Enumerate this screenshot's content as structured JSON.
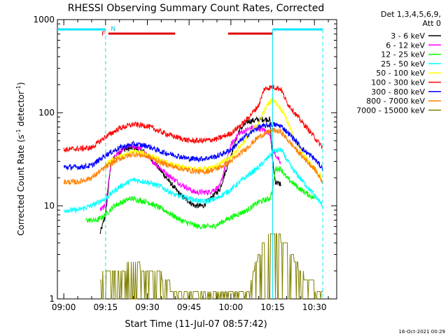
{
  "chart_data": {
    "type": "line",
    "title": "RHESSI Observing Summary Count Rates, Corrected",
    "xlabel": "Start Time (11-Jul-07 08:57:42)",
    "ylabel_main": "Corrected Count Rate (s",
    "ylabel_sup1": "-1",
    "ylabel_mid": " detector",
    "ylabel_sup2": "-1",
    "ylabel_end": ")",
    "yscale": "log",
    "ylim": [
      1,
      1000
    ],
    "xlim": [
      "08:57:42",
      "10:38"
    ],
    "x_ticks": [
      "09:00",
      "09:15",
      "09:30",
      "09:45",
      "10:00",
      "10:15",
      "10:30"
    ],
    "y_ticks": [
      "1",
      "10",
      "100",
      "1000"
    ],
    "legend_header": [
      "Det 1,3,4,5,6,9,",
      "Att 0"
    ],
    "legend_position": "right",
    "footer_date": "16-Oct-2021 00:29",
    "flags": {
      "F_label": "F",
      "N_label": "N",
      "eclipse_bars": [
        [
          "08:57:42",
          "09:15"
        ],
        [
          "10:15",
          "10:33"
        ]
      ],
      "flare_bars": [
        [
          "09:16",
          "09:40"
        ],
        [
          "09:59",
          "10:15"
        ]
      ],
      "saa_lines": [
        "09:15",
        "10:33"
      ],
      "night_lines": [
        "10:15"
      ]
    },
    "series": [
      {
        "name": "3 - 6 keV",
        "color": "#000000",
        "points": [
          [
            "09:13",
            5
          ],
          [
            "09:15",
            8
          ],
          [
            "09:17",
            30
          ],
          [
            "09:21",
            40
          ],
          [
            "09:25",
            42
          ],
          [
            "09:29",
            38
          ],
          [
            "09:33",
            28
          ],
          [
            "09:38",
            18
          ],
          [
            "09:42",
            13
          ],
          [
            "09:47",
            10
          ],
          [
            "09:50",
            10
          ],
          [
            "09:56",
            15
          ],
          [
            "10:00",
            35
          ],
          [
            "10:03",
            65
          ],
          [
            "10:06",
            80
          ],
          [
            "10:10",
            85
          ],
          [
            "10:14",
            85
          ],
          [
            "10:15",
            30
          ],
          [
            "10:16",
            18
          ],
          [
            "10:18",
            17
          ]
        ]
      },
      {
        "name": "6 - 12 keV",
        "color": "#ff00ff",
        "points": [
          [
            "09:13",
            9
          ],
          [
            "09:15",
            10
          ],
          [
            "09:17",
            30
          ],
          [
            "09:21",
            40
          ],
          [
            "09:24",
            45
          ],
          [
            "09:28",
            40
          ],
          [
            "09:32",
            30
          ],
          [
            "09:37",
            22
          ],
          [
            "09:42",
            17
          ],
          [
            "09:47",
            14
          ],
          [
            "09:52",
            14
          ],
          [
            "09:56",
            16
          ],
          [
            "10:00",
            45
          ],
          [
            "10:03",
            60
          ],
          [
            "10:08",
            70
          ],
          [
            "10:12",
            65
          ],
          [
            "10:14",
            60
          ],
          [
            "10:15",
            40
          ],
          [
            "10:18",
            28
          ]
        ]
      },
      {
        "name": "12 - 25 keV",
        "color": "#00ff00",
        "points": [
          [
            "09:08",
            7
          ],
          [
            "09:12",
            7
          ],
          [
            "09:15",
            8
          ],
          [
            "09:18",
            10
          ],
          [
            "09:24",
            12
          ],
          [
            "09:30",
            11
          ],
          [
            "09:36",
            9
          ],
          [
            "09:42",
            7
          ],
          [
            "09:48",
            6
          ],
          [
            "09:54",
            6
          ],
          [
            "09:58",
            7
          ],
          [
            "10:02",
            8
          ],
          [
            "10:06",
            9
          ],
          [
            "10:10",
            11
          ],
          [
            "10:14",
            12
          ],
          [
            "10:15",
            15
          ],
          [
            "10:16",
            25
          ],
          [
            "10:18",
            25
          ],
          [
            "10:20",
            20
          ],
          [
            "10:25",
            15
          ],
          [
            "10:30",
            12
          ]
        ]
      },
      {
        "name": "25 - 50 keV",
        "color": "#00ffff",
        "points": [
          [
            "09:00",
            9
          ],
          [
            "09:05",
            9
          ],
          [
            "09:10",
            10
          ],
          [
            "09:15",
            12
          ],
          [
            "09:20",
            16
          ],
          [
            "09:25",
            19
          ],
          [
            "09:30",
            18
          ],
          [
            "09:35",
            16
          ],
          [
            "09:40",
            13
          ],
          [
            "09:45",
            12
          ],
          [
            "09:50",
            11
          ],
          [
            "09:55",
            12
          ],
          [
            "10:00",
            15
          ],
          [
            "10:05",
            20
          ],
          [
            "10:10",
            26
          ],
          [
            "10:13",
            32
          ],
          [
            "10:15",
            38
          ],
          [
            "10:18",
            40
          ],
          [
            "10:22",
            25
          ],
          [
            "10:26",
            18
          ],
          [
            "10:30",
            13
          ],
          [
            "10:33",
            10
          ]
        ]
      },
      {
        "name": "50 - 100 keV",
        "color": "#ffff00",
        "points": [
          [
            "09:15",
            28
          ],
          [
            "09:20",
            34
          ],
          [
            "09:25",
            38
          ],
          [
            "09:30",
            36
          ],
          [
            "09:35",
            30
          ],
          [
            "09:40",
            27
          ],
          [
            "09:45",
            25
          ],
          [
            "09:50",
            25
          ],
          [
            "09:55",
            27
          ],
          [
            "10:00",
            33
          ],
          [
            "10:05",
            50
          ],
          [
            "10:10",
            80
          ],
          [
            "10:13",
            120
          ],
          [
            "10:15",
            140
          ],
          [
            "10:17",
            120
          ],
          [
            "10:19",
            100
          ],
          [
            "10:22",
            60
          ],
          [
            "10:26",
            35
          ],
          [
            "10:30",
            25
          ],
          [
            "10:33",
            20
          ]
        ]
      },
      {
        "name": "100 - 300 keV",
        "color": "#ff0000",
        "points": [
          [
            "09:00",
            40
          ],
          [
            "09:05",
            41
          ],
          [
            "09:10",
            42
          ],
          [
            "09:15",
            55
          ],
          [
            "09:20",
            68
          ],
          [
            "09:25",
            75
          ],
          [
            "09:30",
            72
          ],
          [
            "09:35",
            62
          ],
          [
            "09:40",
            55
          ],
          [
            "09:45",
            50
          ],
          [
            "09:50",
            50
          ],
          [
            "09:55",
            52
          ],
          [
            "10:00",
            60
          ],
          [
            "10:05",
            80
          ],
          [
            "10:10",
            120
          ],
          [
            "10:12",
            180
          ],
          [
            "10:15",
            190
          ],
          [
            "10:18",
            180
          ],
          [
            "10:20",
            130
          ],
          [
            "10:24",
            90
          ],
          [
            "10:28",
            65
          ],
          [
            "10:33",
            42
          ]
        ]
      },
      {
        "name": "300 - 800 keV",
        "color": "#0000ff",
        "points": [
          [
            "09:00",
            26
          ],
          [
            "09:05",
            26
          ],
          [
            "09:10",
            27
          ],
          [
            "09:15",
            35
          ],
          [
            "09:20",
            42
          ],
          [
            "09:25",
            46
          ],
          [
            "09:30",
            44
          ],
          [
            "09:35",
            38
          ],
          [
            "09:40",
            35
          ],
          [
            "09:45",
            32
          ],
          [
            "09:50",
            32
          ],
          [
            "09:55",
            34
          ],
          [
            "10:00",
            40
          ],
          [
            "10:05",
            55
          ],
          [
            "10:10",
            70
          ],
          [
            "10:15",
            75
          ],
          [
            "10:18",
            72
          ],
          [
            "10:22",
            55
          ],
          [
            "10:26",
            40
          ],
          [
            "10:30",
            32
          ],
          [
            "10:33",
            25
          ]
        ]
      },
      {
        "name": "800 - 7000 keV",
        "color": "#ff8000",
        "points": [
          [
            "09:00",
            18
          ],
          [
            "09:05",
            18
          ],
          [
            "09:10",
            20
          ],
          [
            "09:15",
            26
          ],
          [
            "09:20",
            32
          ],
          [
            "09:25",
            36
          ],
          [
            "09:30",
            34
          ],
          [
            "09:35",
            29
          ],
          [
            "09:40",
            26
          ],
          [
            "09:45",
            24
          ],
          [
            "09:50",
            23
          ],
          [
            "09:55",
            25
          ],
          [
            "10:00",
            30
          ],
          [
            "10:05",
            40
          ],
          [
            "10:10",
            55
          ],
          [
            "10:15",
            65
          ],
          [
            "10:18",
            62
          ],
          [
            "10:22",
            45
          ],
          [
            "10:26",
            33
          ],
          [
            "10:30",
            25
          ],
          [
            "10:33",
            18
          ]
        ]
      },
      {
        "name": "7000 - 15000 keV",
        "color": "#808000",
        "points": [
          [
            "09:13",
            1.6
          ],
          [
            "09:15",
            2.0
          ],
          [
            "09:20",
            2.0
          ],
          [
            "09:25",
            2.5
          ],
          [
            "09:30",
            2.0
          ],
          [
            "09:35",
            1.8
          ],
          [
            "09:40",
            1.2
          ],
          [
            "10:07",
            1.3
          ],
          [
            "10:09",
            2.5
          ],
          [
            "10:11",
            3.5
          ],
          [
            "10:13",
            4.5
          ],
          [
            "10:15",
            5.0
          ],
          [
            "10:17",
            5.0
          ],
          [
            "10:19",
            4.0
          ],
          [
            "10:22",
            3.0
          ],
          [
            "10:25",
            2.0
          ],
          [
            "10:28",
            1.5
          ],
          [
            "10:33",
            1.2
          ]
        ]
      }
    ]
  }
}
